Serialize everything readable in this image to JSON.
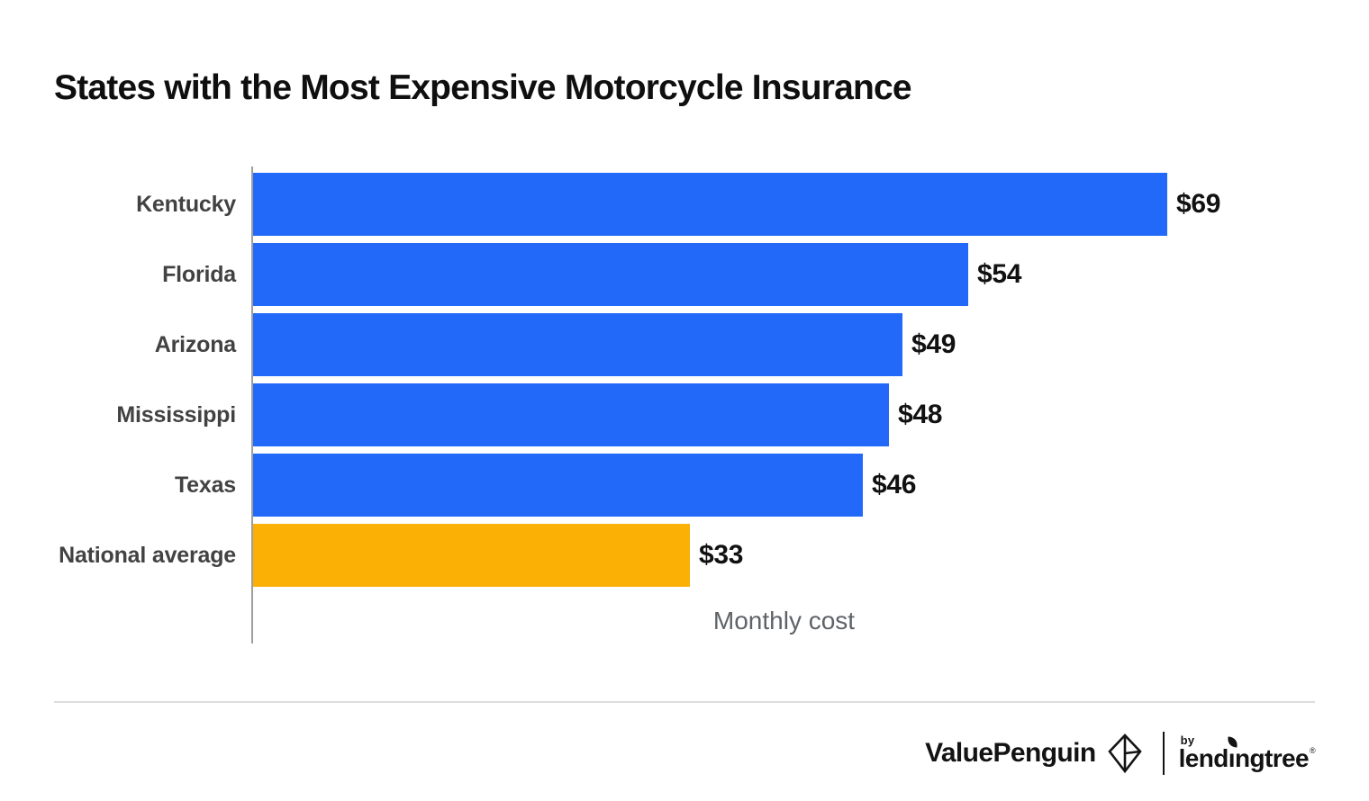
{
  "title": "States with the Most Expensive Motorcycle Insurance",
  "chart_data": {
    "type": "bar",
    "orientation": "horizontal",
    "title": "States with the Most Expensive Motorcycle Insurance",
    "categories": [
      "Kentucky",
      "Florida",
      "Arizona",
      "Mississippi",
      "Texas",
      "National average"
    ],
    "values": [
      69,
      54,
      49,
      48,
      46,
      33
    ],
    "value_labels": [
      "$69",
      "$54",
      "$49",
      "$48",
      "$46",
      "$33"
    ],
    "xlabel": "Monthly cost",
    "ylabel": "",
    "xlim": [
      0,
      69
    ],
    "grid": false,
    "legend": null,
    "bar_color_default": "#2269FA",
    "bar_color_highlight": "#FAB005",
    "highlight_category": "National average"
  },
  "colors": {
    "bar_blue": "#2269FA",
    "bar_orange": "#FAB005",
    "axis_line": "#9E9E9E",
    "category_label": "#424242",
    "value_label": "#111111",
    "xlabel_text": "#5F6368",
    "divider": "#DDDDDD",
    "title_text": "#0F0F0F",
    "logo_ink": "#131313"
  },
  "footer": {
    "brand": "ValuePenguin",
    "brand_icon": "valuepenguin-diamond-icon",
    "byline": "by",
    "partner": "lendingtree",
    "partner_mark": "®"
  }
}
